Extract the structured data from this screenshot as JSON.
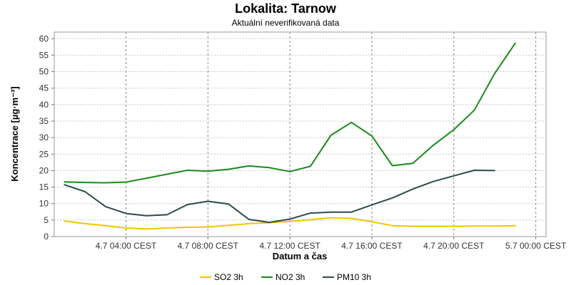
{
  "chart_data": {
    "type": "line",
    "title": "Lokalita: Tarnow",
    "subtitle": "Aktuální neverifikovaná data",
    "xlabel": "Datum a čas",
    "ylabel": "Koncentrace [µg·m⁻³]",
    "ylim": [
      0,
      62
    ],
    "yticks": [
      0,
      5,
      10,
      15,
      20,
      25,
      30,
      35,
      40,
      45,
      50,
      55,
      60
    ],
    "xlim": [
      "2025-07-04 00:30",
      "2025-07-05 00:30"
    ],
    "xticks": [
      {
        "x": "2025-07-04 04:00",
        "label": "4.7 04:00 CEST"
      },
      {
        "x": "2025-07-04 08:00",
        "label": "4.7 08:00 CEST"
      },
      {
        "x": "2025-07-04 12:00",
        "label": "4.7 12:00 CEST"
      },
      {
        "x": "2025-07-04 16:00",
        "label": "4.7 16:00 CEST"
      },
      {
        "x": "2025-07-04 20:00",
        "label": "4.7 20:00 CEST"
      },
      {
        "x": "2025-07-05 00:00",
        "label": "5.7 00:00 CEST"
      }
    ],
    "x": [
      "2025-07-04 01:00",
      "2025-07-04 02:00",
      "2025-07-04 03:00",
      "2025-07-04 04:00",
      "2025-07-04 05:00",
      "2025-07-04 06:00",
      "2025-07-04 07:00",
      "2025-07-04 08:00",
      "2025-07-04 09:00",
      "2025-07-04 10:00",
      "2025-07-04 11:00",
      "2025-07-04 12:00",
      "2025-07-04 13:00",
      "2025-07-04 14:00",
      "2025-07-04 15:00",
      "2025-07-04 16:00",
      "2025-07-04 17:00",
      "2025-07-04 18:00",
      "2025-07-04 19:00",
      "2025-07-04 20:00",
      "2025-07-04 21:00",
      "2025-07-04 22:00",
      "2025-07-04 23:00"
    ],
    "series": [
      {
        "name": "SO2 3h",
        "color": "#f2c500",
        "values": [
          4.7,
          3.9,
          3.3,
          2.6,
          2.3,
          2.6,
          2.8,
          2.9,
          3.4,
          3.9,
          4.2,
          4.6,
          5.1,
          5.7,
          5.5,
          4.5,
          3.3,
          3.1,
          3.1,
          3.1,
          3.2,
          3.2,
          3.3
        ]
      },
      {
        "name": "NO2 3h",
        "color": "#1a8a1a",
        "values": [
          16.6,
          16.4,
          16.3,
          16.5,
          17.7,
          18.9,
          20.1,
          19.8,
          20.4,
          21.4,
          20.9,
          19.7,
          21.3,
          30.7,
          34.6,
          30.5,
          21.5,
          22.2,
          27.7,
          32.4,
          38.3,
          49.5,
          58.6
        ]
      },
      {
        "name": "PM10 3h",
        "color": "#2e4a4a",
        "values": [
          15.7,
          13.6,
          9.1,
          7.0,
          6.3,
          6.6,
          9.7,
          10.7,
          9.9,
          5.2,
          4.3,
          5.3,
          7.1,
          7.4,
          7.4,
          9.6,
          11.7,
          14.4,
          16.7,
          18.4,
          20.1,
          20.0,
          null
        ]
      }
    ],
    "grid": true,
    "legend": "bottom"
  }
}
